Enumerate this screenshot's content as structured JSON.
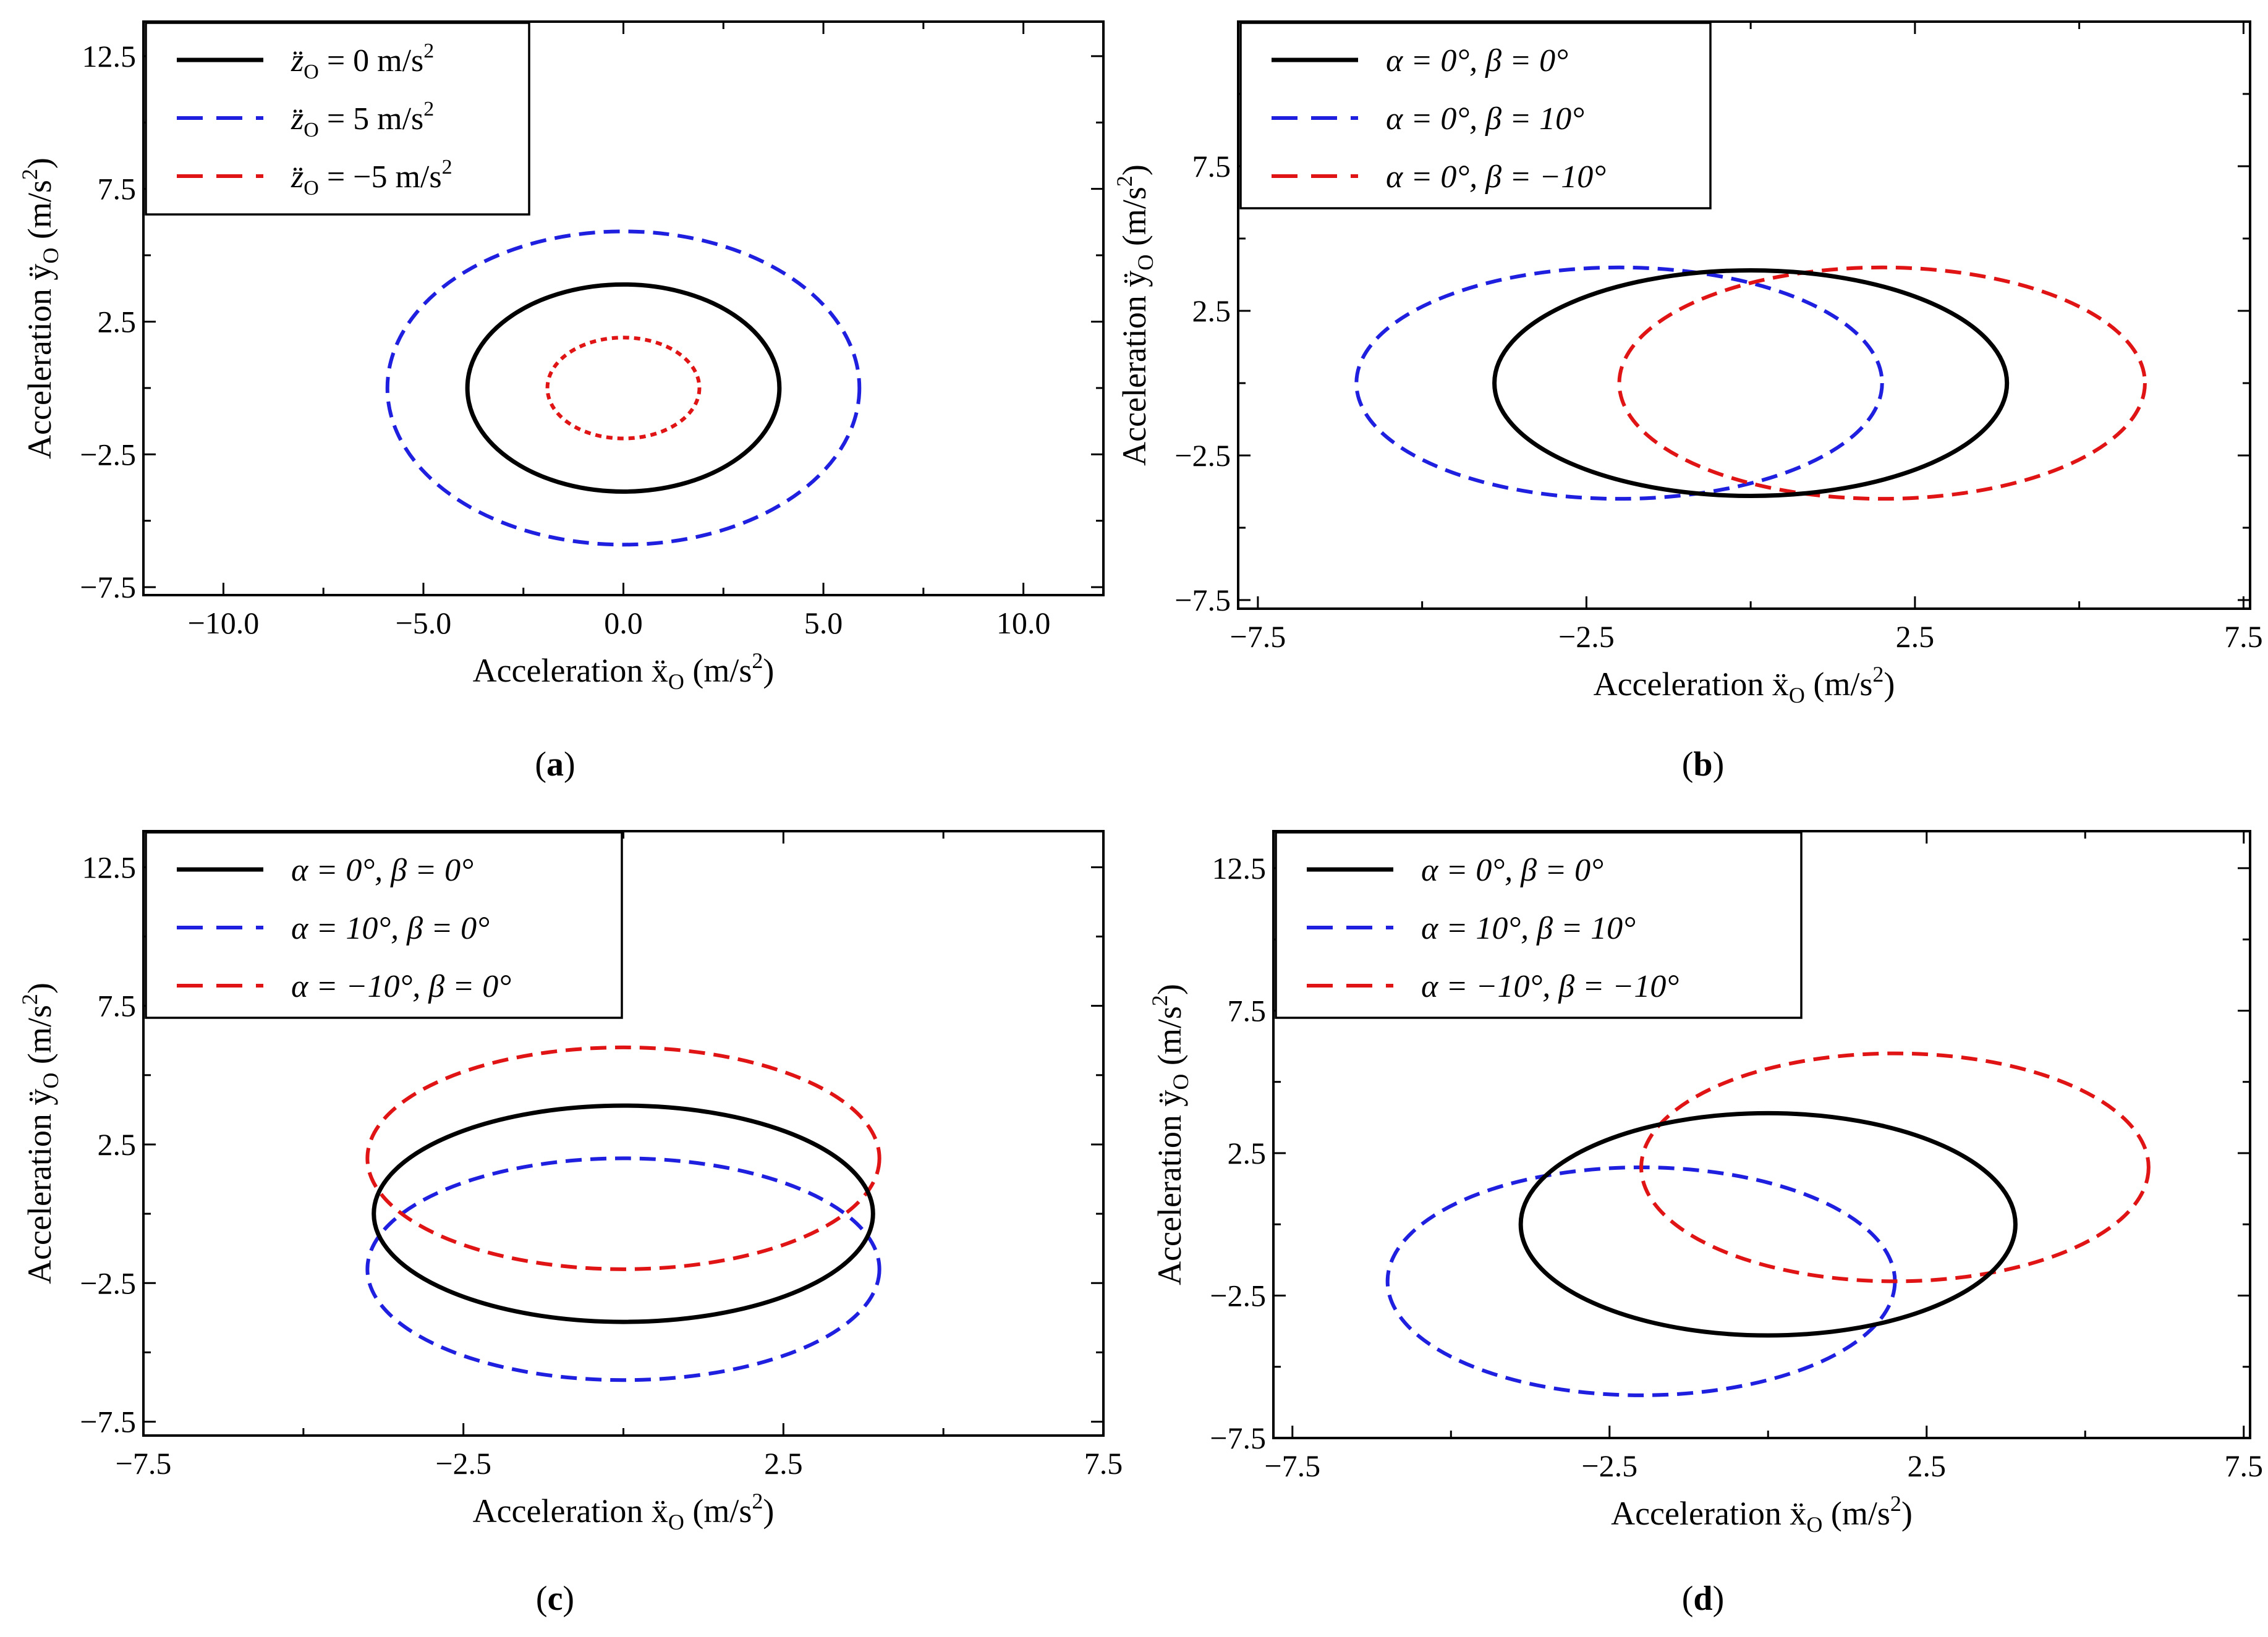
{
  "colors": {
    "black": "#000000",
    "blue": "#1f1fe0",
    "red": "#e01414"
  },
  "chart_data": [
    {
      "type": "line",
      "panel": "(a)",
      "panel_letter": "a",
      "xlabel": "Acceleration ẍ",
      "xlabel_sub": "O",
      "xlabel_unit": " (m/s",
      "ylabel": "Acceleration ÿ",
      "ylabel_sub": "O",
      "ylabel_unit": " (m/s",
      "unit_sup": "2",
      "unit_close": ")",
      "xlim": [
        -12.0,
        12.0
      ],
      "ylim": [
        -7.8,
        13.8
      ],
      "xticks": [
        -10.0,
        -5.0,
        0.0,
        5.0,
        10.0
      ],
      "xtick_labels": [
        "−10.0",
        "−5.0",
        "0.0",
        "5.0",
        "10.0"
      ],
      "yticks": [
        -7.5,
        -2.5,
        2.5,
        7.5,
        12.5
      ],
      "ytick_labels": [
        "−7.5",
        "−2.5",
        "2.5",
        "7.5",
        "12.5"
      ],
      "legend": "top-left",
      "series": [
        {
          "name": "z̈O = 0 m/s2",
          "label_main": "z̈",
          "label_sub": "O",
          "label_rest": " = 0 m/s",
          "label_sup": "2",
          "color": "#000000",
          "style": "solid",
          "ellipse": {
            "cx": 0.0,
            "cy": 0.0,
            "rx": 3.9,
            "ry": 3.9
          }
        },
        {
          "name": "z̈O = 5 m/s2",
          "label_main": "z̈",
          "label_sub": "O",
          "label_rest": " = 5 m/s",
          "label_sup": "2",
          "color": "#1f1fe0",
          "style": "dashed",
          "ellipse": {
            "cx": 0.0,
            "cy": 0.0,
            "rx": 5.9,
            "ry": 5.9
          }
        },
        {
          "name": "z̈O = −5 m/s2",
          "label_main": "z̈",
          "label_sub": "O",
          "label_rest": " = −5 m/s",
          "label_sup": "2",
          "color": "#e01414",
          "style": "dotted",
          "ellipse": {
            "cx": 0.0,
            "cy": 0.0,
            "rx": 1.9,
            "ry": 1.9
          }
        }
      ]
    },
    {
      "type": "line",
      "panel": "(b)",
      "panel_letter": "b",
      "xlabel": "Acceleration ẍ",
      "xlabel_sub": "O",
      "xlabel_unit": " (m/s",
      "ylabel": "Acceleration ÿ",
      "ylabel_sub": "O",
      "ylabel_unit": " (m/s",
      "unit_sup": "2",
      "unit_close": ")",
      "xlim": [
        -7.8,
        7.6
      ],
      "ylim": [
        -7.8,
        12.5
      ],
      "xticks": [
        -7.5,
        -2.5,
        2.5,
        7.5
      ],
      "xtick_labels": [
        "−7.5",
        "−2.5",
        "2.5",
        "7.5"
      ],
      "yticks": [
        -7.5,
        -2.5,
        2.5,
        7.5
      ],
      "ytick_labels": [
        "−7.5",
        "−2.5",
        "2.5",
        "7.5"
      ],
      "legend": "top-left",
      "series": [
        {
          "name": "α = 0°, β = 0°",
          "label_main": "α = 0°, β = 0°",
          "color": "#000000",
          "style": "solid",
          "ellipse": {
            "cx": 0.0,
            "cy": 0.0,
            "rx": 3.9,
            "ry": 3.9
          }
        },
        {
          "name": "α = 0°, β = 10°",
          "label_main": "α = 0°, β = 10°",
          "color": "#1f1fe0",
          "style": "dashed",
          "ellipse": {
            "cx": -2.0,
            "cy": 0.0,
            "rx": 4.0,
            "ry": 4.0
          }
        },
        {
          "name": "α = 0°, β = −10°",
          "label_main": "α = 0°, β = −10°",
          "color": "#e01414",
          "style": "dashed",
          "ellipse": {
            "cx": 2.0,
            "cy": 0.0,
            "rx": 4.0,
            "ry": 4.0
          }
        }
      ]
    },
    {
      "type": "line",
      "panel": "(c)",
      "panel_letter": "c",
      "xlabel": "Acceleration ẍ",
      "xlabel_sub": "O",
      "xlabel_unit": " (m/s",
      "ylabel": "Acceleration ÿ",
      "ylabel_sub": "O",
      "ylabel_unit": " (m/s",
      "unit_sup": "2",
      "unit_close": ")",
      "xlim": [
        -7.5,
        7.5
      ],
      "ylim": [
        -8.0,
        13.8
      ],
      "xticks": [
        -7.5,
        -2.5,
        2.5,
        7.5
      ],
      "xtick_labels": [
        "−7.5",
        "−2.5",
        "2.5",
        "7.5"
      ],
      "yticks": [
        -7.5,
        -2.5,
        2.5,
        7.5,
        12.5
      ],
      "ytick_labels": [
        "−7.5",
        "−2.5",
        "2.5",
        "7.5",
        "12.5"
      ],
      "legend": "top-left",
      "series": [
        {
          "name": "α = 0°, β = 0°",
          "label_main": "α = 0°, β = 0°",
          "color": "#000000",
          "style": "solid",
          "ellipse": {
            "cx": 0.0,
            "cy": 0.0,
            "rx": 3.9,
            "ry": 3.9
          }
        },
        {
          "name": "α = 10°, β = 0°",
          "label_main": "α = 10°, β = 0°",
          "color": "#1f1fe0",
          "style": "dashed",
          "ellipse": {
            "cx": 0.0,
            "cy": -2.0,
            "rx": 4.0,
            "ry": 4.0
          }
        },
        {
          "name": "α = −10°, β = 0°",
          "label_main": "α = −10°, β = 0°",
          "color": "#e01414",
          "style": "dashed",
          "ellipse": {
            "cx": 0.0,
            "cy": 2.0,
            "rx": 4.0,
            "ry": 4.0
          }
        }
      ]
    },
    {
      "type": "line",
      "panel": "(d)",
      "panel_letter": "d",
      "xlabel": "Acceleration ẍ",
      "xlabel_sub": "O",
      "xlabel_unit": " (m/s",
      "ylabel": "Acceleration ÿ",
      "ylabel_sub": "O",
      "ylabel_unit": " (m/s",
      "unit_sup": "2",
      "unit_close": ")",
      "xlim": [
        -7.8,
        7.6
      ],
      "ylim": [
        -7.5,
        13.8
      ],
      "xticks": [
        -7.5,
        -2.5,
        2.5,
        7.5
      ],
      "xtick_labels": [
        "−7.5",
        "−2.5",
        "2.5",
        "7.5"
      ],
      "yticks": [
        -7.5,
        -2.5,
        2.5,
        7.5,
        12.5
      ],
      "ytick_labels": [
        "−7.5",
        "−2.5",
        "2.5",
        "7.5",
        "12.5"
      ],
      "legend": "top-left",
      "series": [
        {
          "name": "α = 0°, β = 0°",
          "label_main": "α = 0°, β = 0°",
          "color": "#000000",
          "style": "solid",
          "ellipse": {
            "cx": 0.0,
            "cy": 0.0,
            "rx": 3.9,
            "ry": 3.9
          }
        },
        {
          "name": "α = 10°, β = 10°",
          "label_main": "α = 10°, β = 10°",
          "color": "#1f1fe0",
          "style": "dashed",
          "ellipse": {
            "cx": -2.0,
            "cy": -2.0,
            "rx": 4.0,
            "ry": 4.0
          }
        },
        {
          "name": "α = −10°, β = −10°",
          "label_main": "α = −10°, β = −10°",
          "color": "#e01414",
          "style": "dashed",
          "ellipse": {
            "cx": 2.0,
            "cy": 2.0,
            "rx": 4.0,
            "ry": 4.0
          }
        }
      ]
    }
  ]
}
